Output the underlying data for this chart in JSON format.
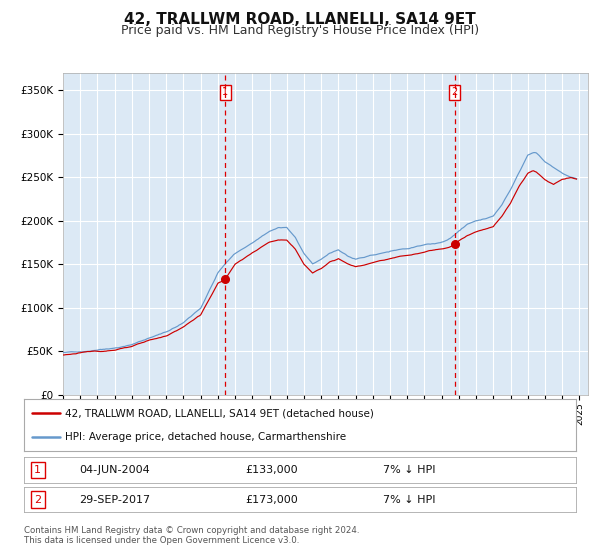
{
  "title": "42, TRALLWM ROAD, LLANELLI, SA14 9ET",
  "subtitle": "Price paid vs. HM Land Registry's House Price Index (HPI)",
  "title_fontsize": 11,
  "subtitle_fontsize": 9,
  "bg_color": "#dce9f5",
  "grid_color": "#ffffff",
  "red_line_color": "#cc0000",
  "blue_line_color": "#6699cc",
  "sale1_date": 2004.42,
  "sale1_price": 133000,
  "sale2_date": 2017.75,
  "sale2_price": 173000,
  "vline_color": "#dd0000",
  "marker_color": "#cc0000",
  "footnote1": "Contains HM Land Registry data © Crown copyright and database right 2024.",
  "footnote2": "This data is licensed under the Open Government Licence v3.0.",
  "legend_label_red": "42, TRALLWM ROAD, LLANELLI, SA14 9ET (detached house)",
  "legend_label_blue": "HPI: Average price, detached house, Carmarthenshire",
  "table_row1": [
    "1",
    "04-JUN-2004",
    "£133,000",
    "7% ↓ HPI"
  ],
  "table_row2": [
    "2",
    "29-SEP-2017",
    "£173,000",
    "7% ↓ HPI"
  ],
  "ylim": [
    0,
    370000
  ],
  "xlim_start": 1995.0,
  "xlim_end": 2025.5,
  "blue_anchors_x": [
    1995.0,
    1996.0,
    1997.0,
    1998.0,
    1999.0,
    2000.0,
    2001.0,
    2002.0,
    2003.0,
    2004.0,
    2004.5,
    2005.0,
    2006.0,
    2007.0,
    2007.5,
    2008.0,
    2008.5,
    2009.0,
    2009.5,
    2010.0,
    2010.5,
    2011.0,
    2011.5,
    2012.0,
    2012.5,
    2013.0,
    2013.5,
    2014.0,
    2014.5,
    2015.0,
    2015.5,
    2016.0,
    2016.5,
    2017.0,
    2017.5,
    2018.0,
    2018.5,
    2019.0,
    2019.5,
    2020.0,
    2020.5,
    2021.0,
    2021.5,
    2022.0,
    2022.3,
    2022.5,
    2023.0,
    2023.5,
    2024.0,
    2024.5,
    2024.9
  ],
  "blue_anchors_y": [
    48000,
    50000,
    52000,
    54000,
    58000,
    65000,
    72000,
    83000,
    100000,
    140000,
    152000,
    162000,
    175000,
    188000,
    192000,
    192000,
    180000,
    162000,
    150000,
    155000,
    163000,
    167000,
    160000,
    155000,
    157000,
    160000,
    163000,
    165000,
    167000,
    168000,
    170000,
    172000,
    174000,
    176000,
    180000,
    188000,
    196000,
    200000,
    202000,
    205000,
    218000,
    235000,
    255000,
    275000,
    278000,
    278000,
    268000,
    262000,
    255000,
    250000,
    248000
  ],
  "red_anchors_x": [
    1995.0,
    1996.0,
    1997.0,
    1998.0,
    1999.0,
    2000.0,
    2001.0,
    2002.0,
    2003.0,
    2004.0,
    2004.42,
    2005.0,
    2006.0,
    2007.0,
    2007.5,
    2008.0,
    2008.5,
    2009.0,
    2009.5,
    2010.0,
    2010.5,
    2011.0,
    2011.5,
    2012.0,
    2012.5,
    2013.0,
    2013.5,
    2014.0,
    2014.5,
    2015.0,
    2015.5,
    2016.0,
    2016.5,
    2017.0,
    2017.5,
    2017.75,
    2018.0,
    2018.5,
    2019.0,
    2019.5,
    2020.0,
    2020.5,
    2021.0,
    2021.5,
    2022.0,
    2022.3,
    2022.5,
    2023.0,
    2023.5,
    2024.0,
    2024.5,
    2024.9
  ],
  "red_anchors_y": [
    46000,
    48000,
    50000,
    52000,
    55000,
    62000,
    68000,
    78000,
    92000,
    128000,
    133000,
    150000,
    163000,
    175000,
    178000,
    178000,
    167000,
    150000,
    140000,
    145000,
    153000,
    157000,
    151000,
    147000,
    149000,
    152000,
    155000,
    157000,
    159000,
    160000,
    162000,
    164000,
    166000,
    167000,
    170000,
    173000,
    178000,
    184000,
    188000,
    190000,
    193000,
    205000,
    220000,
    240000,
    255000,
    258000,
    256000,
    247000,
    242000,
    248000,
    250000,
    248000
  ]
}
